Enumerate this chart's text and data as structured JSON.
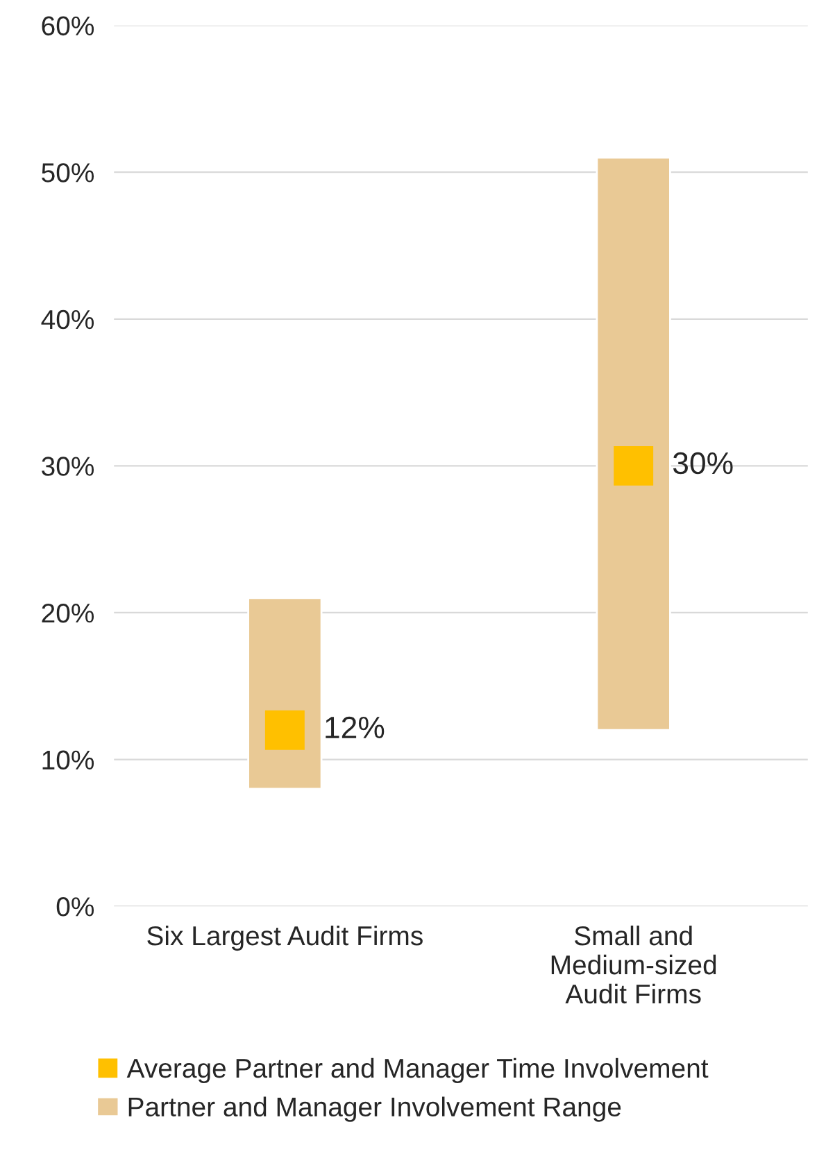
{
  "chart_data": {
    "type": "bar",
    "categories": [
      "Six Largest Audit Firms",
      "Small and\nMedium-sized\nAudit Firms"
    ],
    "series": [
      {
        "name": "Average Partner and Manager Time Involvement",
        "type": "scatter",
        "color": "#ffc000",
        "marker": "square",
        "values": [
          12,
          30
        ],
        "value_labels": [
          "12%",
          "30%"
        ]
      },
      {
        "name": "Partner and Manager Involvement Range",
        "color": "#e9c995",
        "base": [
          8,
          12
        ],
        "values": [
          13,
          39
        ]
      }
    ],
    "ylim": [
      0,
      60
    ],
    "yticks": [
      {
        "value": 0,
        "label": "0%"
      },
      {
        "value": 10,
        "label": "10%"
      },
      {
        "value": 20,
        "label": "20%"
      },
      {
        "value": 30,
        "label": "30%"
      },
      {
        "value": 40,
        "label": "40%"
      },
      {
        "value": 50,
        "label": "50%"
      },
      {
        "value": 60,
        "label": "60%"
      }
    ],
    "grid": "y",
    "legend": "bottom"
  }
}
